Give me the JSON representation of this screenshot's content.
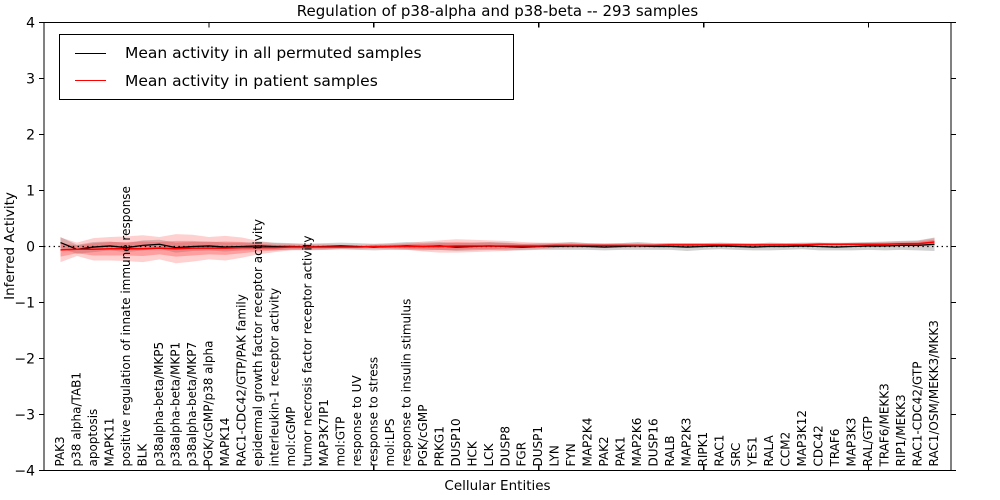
{
  "chart_data": {
    "type": "line",
    "title": "Regulation of p38-alpha and p38-beta -- 293 samples",
    "xlabel": "Cellular Entities",
    "ylabel": "Inferred Activity",
    "ylim": [
      -4,
      4
    ],
    "yticks": [
      4,
      3,
      2,
      1,
      0,
      -1,
      -2,
      -3,
      -4
    ],
    "ytick_labels": [
      "4",
      "3",
      "2",
      "1",
      "0",
      "−1",
      "−2",
      "−3",
      "−4"
    ],
    "xticks_major_values": [
      10,
      20,
      30,
      40,
      50
    ],
    "grid": false,
    "legend_position": "upper-left",
    "zero_line": {
      "value": 0,
      "style": "dotted",
      "color": "#000000"
    },
    "categories": [
      "PAK3",
      "p38 alpha/TAB1",
      "apoptosis",
      "MAPK11",
      "positive regulation of innate immune response",
      "BLK",
      "p38alpha-beta/MKP5",
      "p38alpha-beta/MKP1",
      "p38alpha-beta/MKP7",
      "PGK/cGMP/p38 alpha",
      "MAPK14",
      "RAC1-CDC42/GTP/PAK family",
      "epidermal growth factor receptor activity",
      "interleukin-1 receptor activity",
      "mol:cGMP",
      "tumor necrosis factor receptor activity",
      "MAP3K7IP1",
      "mol:GTP",
      "response to UV",
      "response to stress",
      "mol:LPS",
      "response to insulin stimulus",
      "PGK/cGMP",
      "PRKG1",
      "DUSP10",
      "HCK",
      "LCK",
      "DUSP8",
      "FGR",
      "DUSP1",
      "LYN",
      "FYN",
      "MAP2K4",
      "PAK2",
      "PAK1",
      "MAP2K6",
      "DUSP16",
      "RALB",
      "MAP2K3",
      "RIPK1",
      "RAC1",
      "SRC",
      "YES1",
      "RALA",
      "CCM2",
      "MAP3K12",
      "CDC42",
      "TRAF6",
      "MAP3K3",
      "RAL/GTP",
      "TRAF6/MEKK3",
      "RIP1/MEKK3",
      "RAC1-CDC42/GTP",
      "RAC1/OSM/MEKK3/MKK3"
    ],
    "series": [
      {
        "name": "Mean activity in all permuted samples",
        "color": "#000000",
        "values": [
          0.07,
          -0.05,
          -0.01,
          0.01,
          -0.02,
          0.02,
          0.04,
          -0.02,
          0,
          0.01,
          -0.01,
          0,
          0.01,
          0,
          0,
          -0.01,
          0,
          0.01,
          0,
          -0.01,
          0,
          0.01,
          0,
          0.01,
          -0.01,
          0,
          0.01,
          0,
          -0.01,
          0,
          0,
          0.01,
          0,
          -0.01,
          0,
          0.01,
          0,
          0,
          -0.01,
          0,
          0.01,
          0,
          -0.01,
          0,
          0,
          0.01,
          0,
          -0.01,
          0,
          0.01,
          0.01,
          0.02,
          0.02,
          0.04
        ]
      },
      {
        "name": "Mean activity in patient samples",
        "color": "#ff0000",
        "values": [
          -0.06,
          -0.05,
          -0.05,
          -0.04,
          -0.04,
          -0.04,
          -0.03,
          -0.04,
          -0.03,
          -0.03,
          -0.03,
          -0.02,
          -0.02,
          -0.02,
          -0.01,
          -0.01,
          -0.01,
          -0.01,
          -0.01,
          0,
          0,
          0,
          0,
          0,
          0.01,
          0.01,
          0.01,
          0.01,
          0.01,
          0.01,
          0.02,
          0.02,
          0.02,
          0.02,
          0.02,
          0.02,
          0.02,
          0.03,
          0.03,
          0.03,
          0.03,
          0.03,
          0.03,
          0.03,
          0.03,
          0.03,
          0.04,
          0.04,
          0.04,
          0.04,
          0.04,
          0.05,
          0.05,
          0.08
        ]
      }
    ],
    "bands": [
      {
        "name": "permuted samples range",
        "color": "#999999",
        "opacity": 0.45,
        "center_series": 0,
        "half_widths": [
          0.1,
          0.08,
          0.09,
          0.08,
          0.08,
          0.09,
          0.08,
          0.09,
          0.08,
          0.08,
          0.08,
          0.07,
          0.07,
          0.07,
          0.06,
          0.06,
          0.06,
          0.06,
          0.06,
          0.06,
          0.06,
          0.07,
          0.07,
          0.07,
          0.07,
          0.07,
          0.07,
          0.07,
          0.06,
          0.06,
          0.06,
          0.07,
          0.06,
          0.06,
          0.06,
          0.07,
          0.06,
          0.06,
          0.07,
          0.06,
          0.06,
          0.06,
          0.06,
          0.07,
          0.06,
          0.06,
          0.07,
          0.06,
          0.07,
          0.07,
          0.08,
          0.08,
          0.09,
          0.12
        ]
      },
      {
        "name": "patient samples range outer",
        "color": "#ff2a2a",
        "opacity": 0.22,
        "center_series": 1,
        "half_widths": [
          0.22,
          0.12,
          0.2,
          0.21,
          0.22,
          0.24,
          0.2,
          0.26,
          0.24,
          0.2,
          0.22,
          0.18,
          0.12,
          0.08,
          0.06,
          0.05,
          0.05,
          0.04,
          0.04,
          0.04,
          0.05,
          0.06,
          0.09,
          0.11,
          0.12,
          0.11,
          0.1,
          0.09,
          0.07,
          0.06,
          0.05,
          0.05,
          0.04,
          0.04,
          0.04,
          0.04,
          0.03,
          0.03,
          0.03,
          0.03,
          0.03,
          0.03,
          0.03,
          0.03,
          0.03,
          0.03,
          0.03,
          0.03,
          0.03,
          0.03,
          0.04,
          0.04,
          0.05,
          0.07
        ]
      },
      {
        "name": "patient samples range inner",
        "color": "#ff2a2a",
        "opacity": 0.3,
        "center_series": 1,
        "half_widths": [
          0.12,
          0.07,
          0.11,
          0.12,
          0.12,
          0.13,
          0.11,
          0.14,
          0.13,
          0.11,
          0.12,
          0.1,
          0.07,
          0.05,
          0.04,
          0.03,
          0.03,
          0.02,
          0.02,
          0.02,
          0.03,
          0.04,
          0.05,
          0.06,
          0.07,
          0.06,
          0.06,
          0.05,
          0.04,
          0.03,
          0.03,
          0.03,
          0.02,
          0.02,
          0.02,
          0.02,
          0.02,
          0.02,
          0.02,
          0.02,
          0.02,
          0.02,
          0.02,
          0.02,
          0.02,
          0.02,
          0.02,
          0.02,
          0.02,
          0.02,
          0.02,
          0.02,
          0.03,
          0.04
        ]
      }
    ]
  }
}
